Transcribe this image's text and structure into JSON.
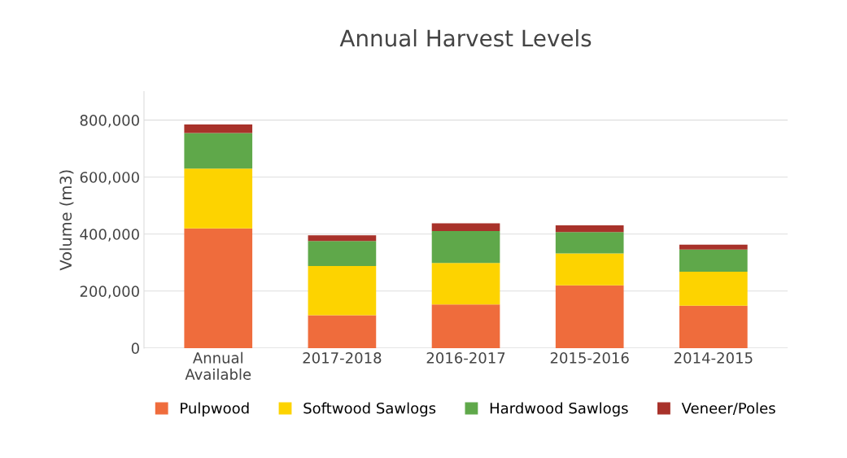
{
  "chart_data": {
    "type": "bar",
    "title": "Annual Harvest Levels",
    "ylabel": "Volume (m3)",
    "categories": [
      "Annual\nAvailable",
      "2017-2018",
      "2016-2017",
      "2015-2016",
      "2014-2015"
    ],
    "stacked": true,
    "series": [
      {
        "name": "Pulpwood",
        "color": "#ef6c3c",
        "values": [
          420000,
          115000,
          153000,
          220000,
          149000
        ]
      },
      {
        "name": "Softwood Sawlogs",
        "color": "#fdd300",
        "values": [
          210000,
          173000,
          146000,
          112000,
          119000
        ]
      },
      {
        "name": "Hardwood Sawlogs",
        "color": "#5fa84a",
        "values": [
          125000,
          88000,
          112000,
          75000,
          78000
        ]
      },
      {
        "name": "Veneer/Poles",
        "color": "#a8322a",
        "values": [
          30000,
          20000,
          27000,
          24000,
          17000
        ]
      }
    ],
    "ylim": [
      0,
      900000
    ],
    "yticks": [
      {
        "value": 0,
        "label": "0"
      },
      {
        "value": 200000,
        "label": "200,000"
      },
      {
        "value": 400000,
        "label": "400,000"
      },
      {
        "value": 600000,
        "label": "600,000"
      },
      {
        "value": 800000,
        "label": "800,000"
      }
    ],
    "grid": "y",
    "legend": "bottom"
  }
}
